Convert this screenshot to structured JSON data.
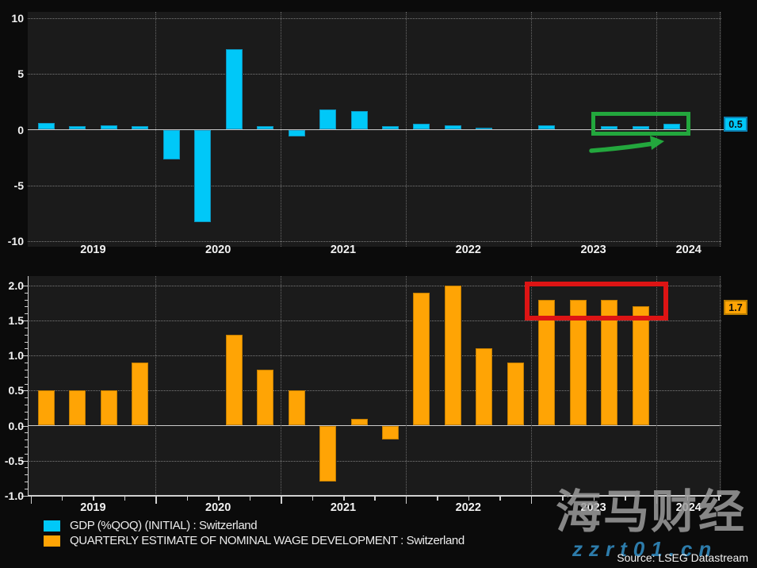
{
  "page": {
    "background": "#0b0b0b"
  },
  "chart_data": [
    {
      "type": "bar",
      "series_name": "GDP (%QOQ) (INITIAL) : Switzerland",
      "color": "#00c8f8",
      "bar_border_color": "#0d94be",
      "tag_border_color": "#0c7fb0",
      "frequency": "quarterly",
      "start_year": 2019,
      "values": [
        0.6,
        0.3,
        0.4,
        0.3,
        -2.7,
        -8.3,
        7.2,
        0.3,
        -0.6,
        1.8,
        1.7,
        0.3,
        0.5,
        0.4,
        0.2,
        0.0,
        0.4,
        0.0,
        0.3,
        0.3,
        0.5
      ],
      "ylim": [
        -10,
        10
      ],
      "ytick_labels": [
        "10",
        "5",
        "0",
        "-5",
        "-10"
      ],
      "xtick_labels": [
        "2019",
        "2020",
        "2021",
        "2022",
        "2023",
        "2024"
      ],
      "last_value_label": "0.5",
      "grid": "dotted",
      "legend_position": "bottom-left"
    },
    {
      "type": "bar",
      "series_name": "QUARTERLY ESTIMATE OF NOMINAL WAGE DEVELOPMENT : Switzerland",
      "color": "#ffa405",
      "bar_border_color": "#c17c00",
      "tag_border_color": "#b97d00",
      "frequency": "quarterly",
      "start_year": 2019,
      "values": [
        0.5,
        0.5,
        0.5,
        0.9,
        0.0,
        0.0,
        1.3,
        0.8,
        0.5,
        -0.8,
        0.1,
        -0.2,
        1.9,
        2.0,
        1.1,
        0.9,
        1.8,
        1.8,
        1.8,
        1.7
      ],
      "ylim": [
        -1.0,
        2.0
      ],
      "ytick_labels": [
        "2.0",
        "1.5",
        "1.0",
        "0.5",
        "0.0",
        "-0.5",
        "-1.0"
      ],
      "xtick_labels": [
        "2019",
        "2020",
        "2021",
        "2022",
        "2023",
        "2024"
      ],
      "last_value_label": "1.7",
      "grid": "dotted",
      "legend_position": "bottom-left"
    }
  ],
  "legend": [
    {
      "swatch": "#00c8f8",
      "label": "GDP (%QOQ) (INITIAL) : Switzerland"
    },
    {
      "swatch": "#ffa405",
      "label": "QUARTERLY ESTIMATE OF NOMINAL WAGE DEVELOPMENT : Switzerland"
    }
  ],
  "annotations": {
    "green_box_color": "#23a73d",
    "green_arrow_color": "#23a73d",
    "red_box_color": "#dd1414",
    "green_box_target": "GDP bars 2023Q3-2024Q1",
    "red_box_target": "Wage bars 2023Q1-2023Q4"
  },
  "watermark": {
    "brand": "海马财经",
    "url": "zzrt01.cn",
    "brand_color": "#9c9c9c",
    "url_color": "#2d7cab"
  },
  "source": "Source: LSEG Datastream"
}
